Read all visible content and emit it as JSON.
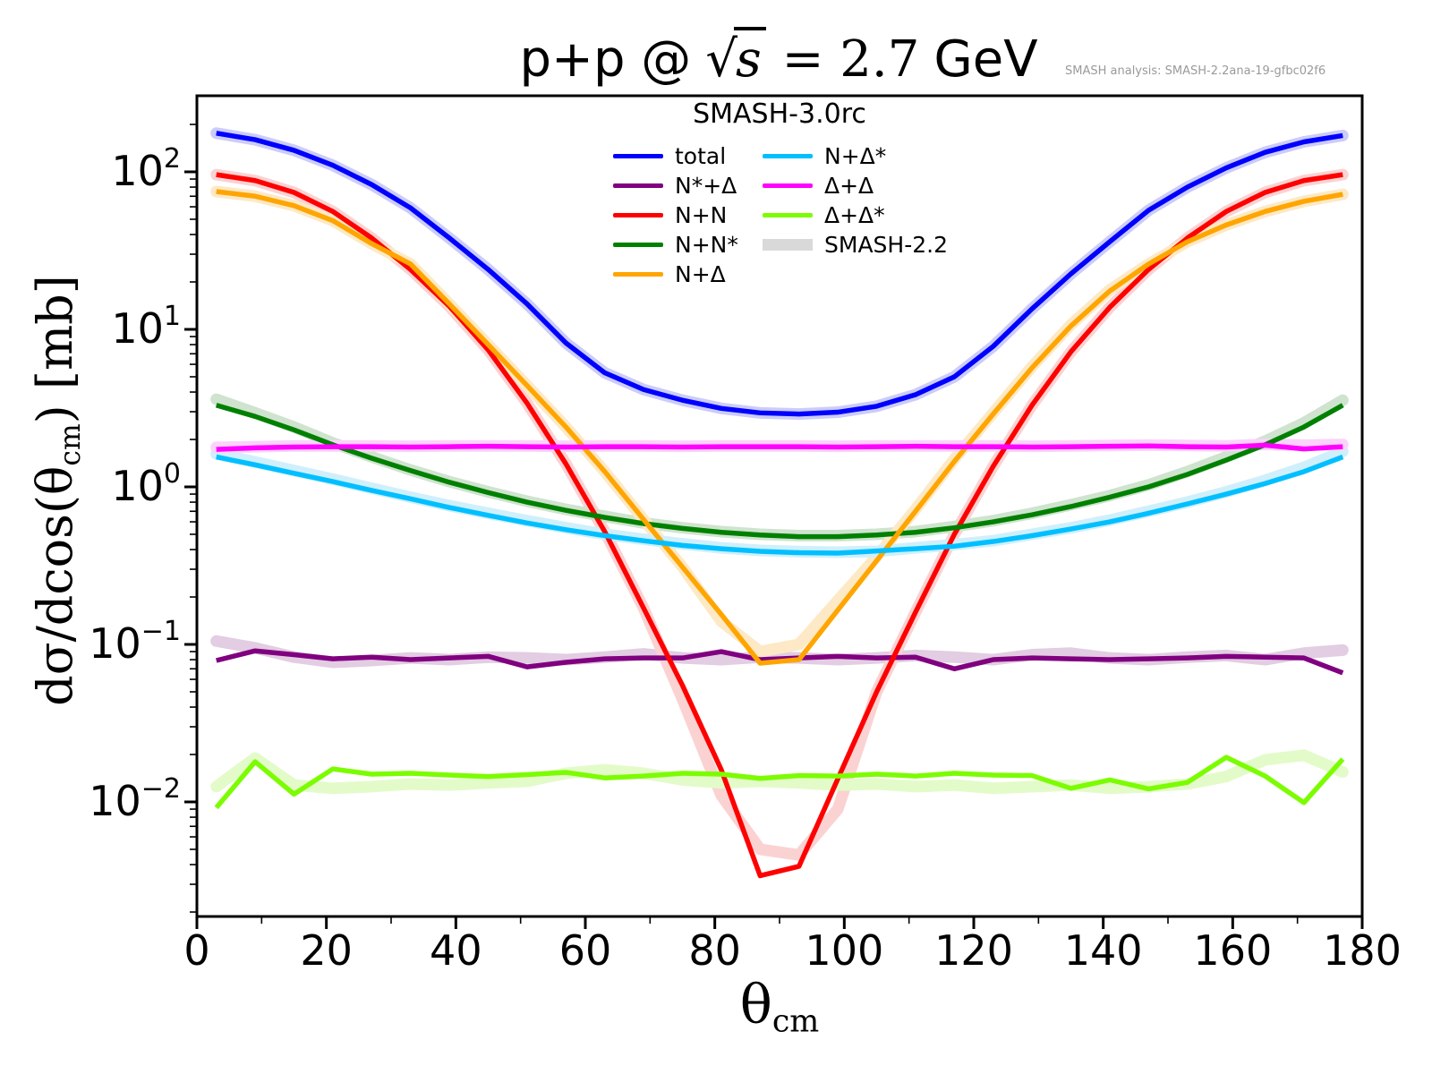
{
  "title": {
    "prefix": "p+p @",
    "sqrt_symbol": "√",
    "sqrt_arg": "s",
    "equals_value": "= 2.7",
    "unit": "GeV"
  },
  "credit": "SMASH analysis: SMASH-2.2ana-19-gfbc02f6",
  "legend": {
    "title": "SMASH-3.0rc",
    "band_label": "SMASH-2.2",
    "band_color": "#d9d9d9",
    "position": "upper center"
  },
  "axes": {
    "ylabel": {
      "pre": "dσ/dcos(θ",
      "sub": "cm",
      "post": ") [mb]"
    },
    "xlabel": {
      "main": "θ",
      "sub": "cm"
    }
  },
  "chart_data": {
    "type": "line",
    "title": "p+p @ sqrt(s) = 2.7 GeV",
    "xlabel": "theta_cm [deg]",
    "ylabel": "dsigma/dcos(theta_cm) [mb]",
    "x_scale": "linear",
    "y_scale": "log",
    "grid": false,
    "xlim": [
      0,
      180
    ],
    "ylim_log10": [
      -2.73,
      2.48
    ],
    "x_ticks": [
      0,
      20,
      40,
      60,
      80,
      100,
      120,
      140,
      160,
      180
    ],
    "y_tick_exponents": [
      "2",
      "1",
      "0",
      "−1",
      "−2"
    ],
    "x": [
      3,
      9,
      15,
      21,
      27,
      33,
      39,
      45,
      51,
      57,
      63,
      69,
      75,
      81,
      87,
      93,
      99,
      105,
      111,
      117,
      123,
      129,
      135,
      141,
      147,
      153,
      159,
      165,
      171,
      177
    ],
    "series": [
      {
        "name": "total",
        "label": "total",
        "color": "#0000ff",
        "band_color": "#ccccfa",
        "values": [
          176,
          160,
          137,
          110,
          83,
          59,
          38,
          24,
          14.5,
          8.2,
          5.3,
          4.15,
          3.55,
          3.15,
          2.95,
          2.9,
          2.98,
          3.25,
          3.85,
          5.0,
          7.8,
          13.5,
          22.5,
          36,
          57,
          80,
          106,
          133,
          155,
          170
        ],
        "band": null
      },
      {
        "name": "nstar-delta",
        "label": "N*+Δ",
        "color": "#800080",
        "band_color": "#e2cde2",
        "values": [
          0.079,
          0.091,
          0.086,
          0.081,
          0.083,
          0.08,
          0.082,
          0.084,
          0.072,
          0.077,
          0.081,
          0.082,
          0.082,
          0.09,
          0.08,
          0.082,
          0.084,
          0.082,
          0.083,
          0.07,
          0.08,
          0.082,
          0.081,
          0.08,
          0.081,
          0.082,
          0.084,
          0.083,
          0.082,
          0.066
        ],
        "band": [
          0.105,
          0.095,
          0.083,
          0.077,
          0.079,
          0.082,
          0.08,
          0.083,
          0.082,
          0.08,
          0.083,
          0.087,
          0.082,
          0.08,
          0.083,
          0.082,
          0.08,
          0.082,
          0.085,
          0.083,
          0.08,
          0.086,
          0.088,
          0.082,
          0.08,
          0.083,
          0.085,
          0.08,
          0.088,
          0.092
        ]
      },
      {
        "name": "n-n",
        "label": "N+N",
        "color": "#ff0000",
        "band_color": "#fbd2d2",
        "values": [
          96,
          88,
          74,
          56,
          38,
          24,
          14,
          7.4,
          3.4,
          1.4,
          0.52,
          0.17,
          0.055,
          0.016,
          0.0034,
          0.0039,
          0.014,
          0.05,
          0.16,
          0.5,
          1.35,
          3.3,
          7.2,
          13.8,
          24,
          38,
          56,
          74,
          88,
          96
        ],
        "band": [
          96,
          88,
          74,
          56,
          38,
          24,
          14,
          7.4,
          3.4,
          1.4,
          0.52,
          0.17,
          0.045,
          0.011,
          0.005,
          0.0046,
          0.009,
          0.05,
          0.16,
          0.5,
          1.35,
          3.3,
          7.2,
          13.8,
          24,
          38,
          56,
          74,
          88,
          96
        ]
      },
      {
        "name": "n-nstar",
        "label": "N+N*",
        "color": "#008000",
        "band_color": "#cfe3cf",
        "values": [
          3.3,
          2.8,
          2.3,
          1.85,
          1.52,
          1.27,
          1.07,
          0.92,
          0.8,
          0.71,
          0.64,
          0.585,
          0.545,
          0.515,
          0.495,
          0.483,
          0.483,
          0.495,
          0.515,
          0.55,
          0.6,
          0.665,
          0.75,
          0.86,
          1.0,
          1.2,
          1.48,
          1.85,
          2.4,
          3.3
        ],
        "band": [
          3.6,
          2.95,
          2.4,
          1.9,
          1.55,
          1.28,
          1.08,
          0.93,
          0.81,
          0.72,
          0.65,
          0.59,
          0.55,
          0.52,
          0.5,
          0.49,
          0.49,
          0.5,
          0.52,
          0.56,
          0.61,
          0.68,
          0.77,
          0.88,
          1.03,
          1.25,
          1.55,
          1.95,
          2.55,
          3.55
        ]
      },
      {
        "name": "n-delta",
        "label": "N+Δ",
        "color": "#ffa500",
        "band_color": "#fde9c6",
        "values": [
          75,
          70,
          61,
          49,
          35,
          26,
          14.5,
          8.0,
          4.4,
          2.4,
          1.25,
          0.62,
          0.31,
          0.155,
          0.076,
          0.08,
          0.165,
          0.34,
          0.7,
          1.45,
          2.9,
          5.7,
          10.5,
          17.5,
          26,
          36,
          46,
          56,
          65,
          72
        ],
        "band": [
          75,
          70,
          61,
          49,
          35,
          26,
          14.5,
          8.0,
          4.4,
          2.4,
          1.25,
          0.62,
          0.31,
          0.14,
          0.09,
          0.1,
          0.19,
          0.36,
          0.72,
          1.5,
          2.95,
          5.8,
          10.7,
          17.8,
          26,
          36,
          46,
          56,
          65,
          72
        ]
      },
      {
        "name": "n-deltastar",
        "label": "N+Δ*",
        "color": "#00bfff",
        "band_color": "#cfeffb",
        "values": [
          1.55,
          1.38,
          1.22,
          1.08,
          0.95,
          0.84,
          0.74,
          0.66,
          0.59,
          0.535,
          0.49,
          0.455,
          0.425,
          0.405,
          0.39,
          0.382,
          0.38,
          0.392,
          0.405,
          0.42,
          0.45,
          0.49,
          0.54,
          0.6,
          0.68,
          0.78,
          0.9,
          1.05,
          1.25,
          1.55
        ],
        "band": [
          1.62,
          1.44,
          1.27,
          1.12,
          0.98,
          0.86,
          0.76,
          0.68,
          0.61,
          0.55,
          0.5,
          0.465,
          0.435,
          0.41,
          0.395,
          0.388,
          0.385,
          0.39,
          0.41,
          0.43,
          0.455,
          0.5,
          0.55,
          0.615,
          0.7,
          0.8,
          0.93,
          1.1,
          1.33,
          1.68
        ]
      },
      {
        "name": "delta-delta",
        "label": "Δ+Δ",
        "color": "#ff00ff",
        "band_color": "#fbd2fb",
        "values": [
          1.73,
          1.77,
          1.79,
          1.8,
          1.8,
          1.79,
          1.8,
          1.81,
          1.8,
          1.79,
          1.8,
          1.8,
          1.79,
          1.8,
          1.8,
          1.8,
          1.79,
          1.8,
          1.81,
          1.8,
          1.8,
          1.79,
          1.8,
          1.81,
          1.82,
          1.8,
          1.79,
          1.84,
          1.74,
          1.8
        ],
        "band": [
          1.78,
          1.8,
          1.82,
          1.82,
          1.82,
          1.81,
          1.82,
          1.82,
          1.82,
          1.81,
          1.82,
          1.82,
          1.81,
          1.82,
          1.82,
          1.82,
          1.81,
          1.82,
          1.82,
          1.82,
          1.82,
          1.81,
          1.82,
          1.83,
          1.84,
          1.83,
          1.82,
          1.86,
          1.84,
          1.86
        ]
      },
      {
        "name": "delta-deltastar",
        "label": "Δ+Δ*",
        "color": "#7cfc00",
        "band_color": "#e3fbc9",
        "values": [
          0.0092,
          0.018,
          0.0112,
          0.0162,
          0.015,
          0.0152,
          0.0148,
          0.0145,
          0.0149,
          0.0154,
          0.0142,
          0.0146,
          0.0152,
          0.015,
          0.0141,
          0.0147,
          0.0146,
          0.015,
          0.0146,
          0.0152,
          0.0148,
          0.0147,
          0.0122,
          0.0138,
          0.0121,
          0.0133,
          0.0192,
          0.0146,
          0.0099,
          0.0187
        ],
        "band": [
          0.0125,
          0.019,
          0.0128,
          0.0122,
          0.0125,
          0.013,
          0.0128,
          0.0132,
          0.0135,
          0.0152,
          0.016,
          0.0152,
          0.0138,
          0.0132,
          0.0135,
          0.0132,
          0.0128,
          0.013,
          0.0125,
          0.0128,
          0.0122,
          0.0125,
          0.0128,
          0.0122,
          0.0125,
          0.013,
          0.0145,
          0.0185,
          0.0198,
          0.0155
        ]
      }
    ]
  }
}
